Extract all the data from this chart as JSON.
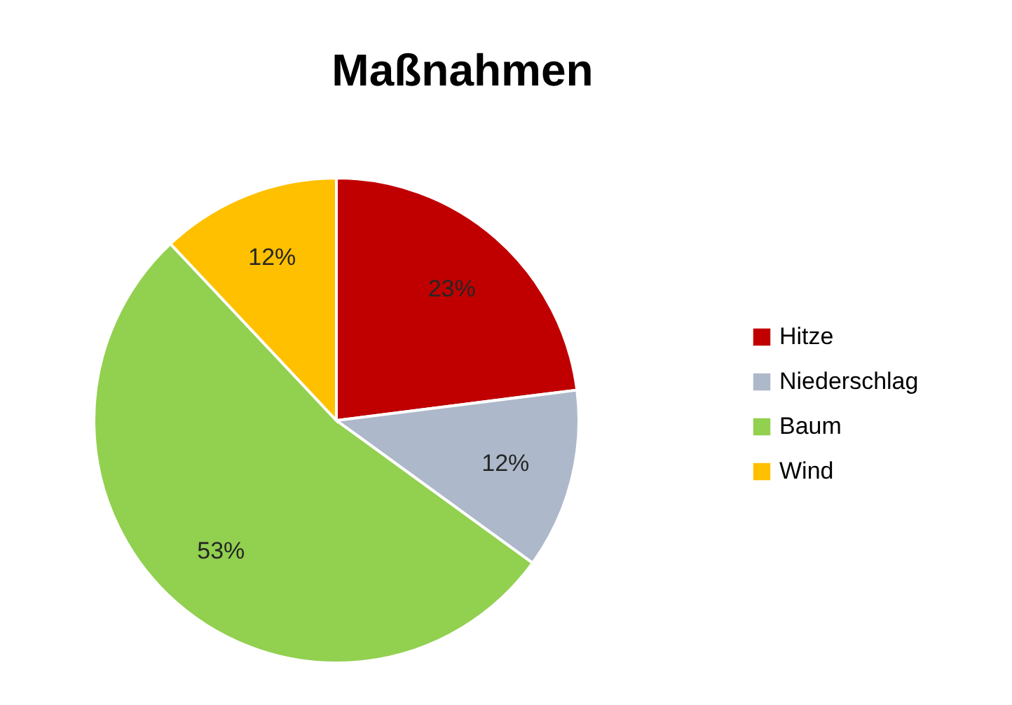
{
  "chart_data": {
    "type": "pie",
    "title": "Maßnahmen",
    "categories": [
      "Hitze",
      "Niederschlag",
      "Baum",
      "Wind"
    ],
    "values": [
      23,
      12,
      53,
      12
    ],
    "colors": [
      "#c00000",
      "#adb9ca",
      "#92d050",
      "#ffc000"
    ],
    "value_labels": [
      "23%",
      "12%",
      "53%",
      "12%"
    ],
    "legend": "right"
  }
}
